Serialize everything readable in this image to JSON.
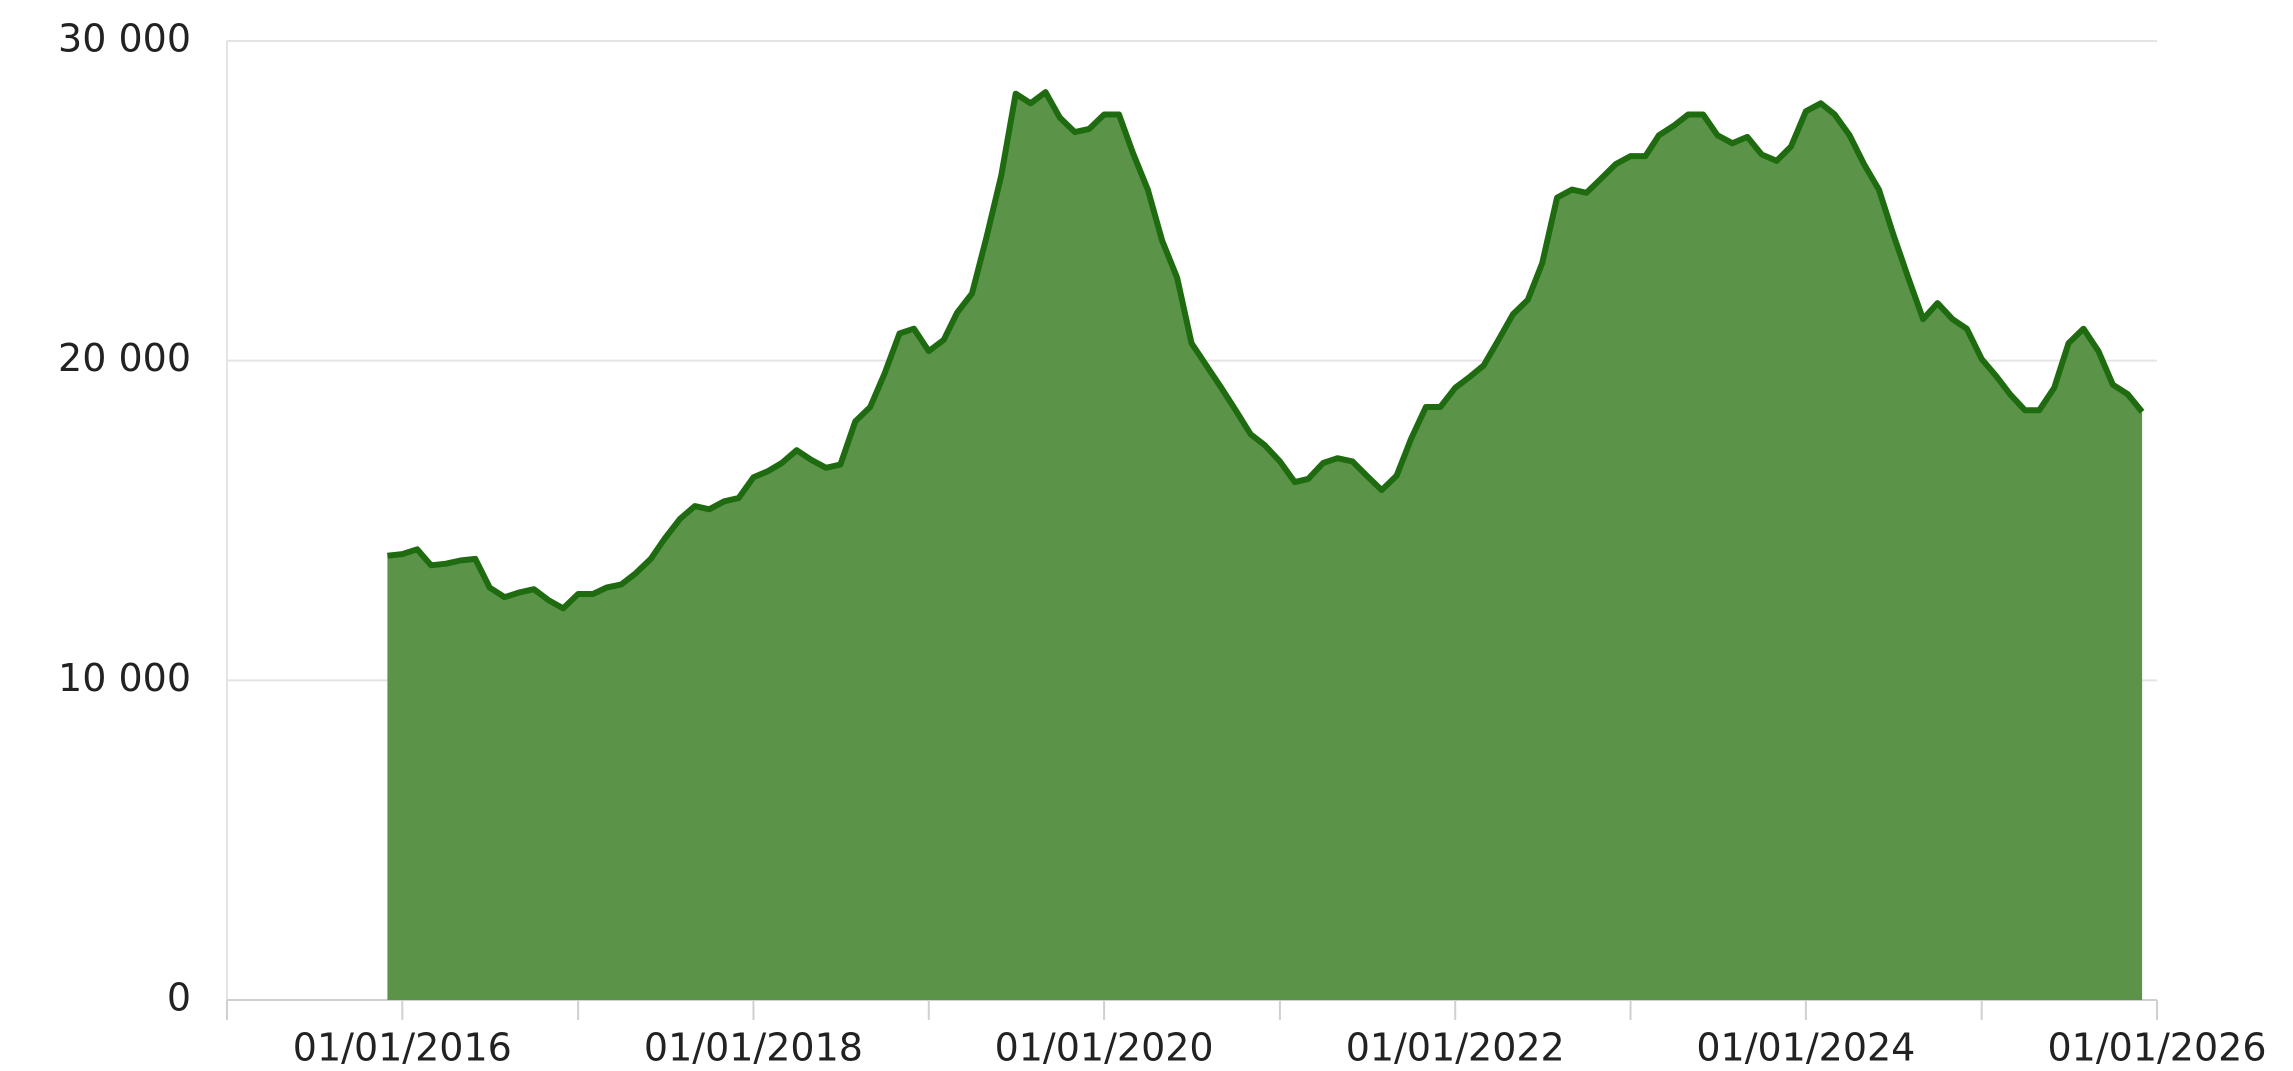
{
  "chart_data": {
    "type": "area",
    "x": [
      "01/12/2015",
      "01/01/2016",
      "01/02/2016",
      "01/03/2016",
      "01/04/2016",
      "01/05/2016",
      "01/06/2016",
      "01/07/2016",
      "01/08/2016",
      "01/09/2016",
      "01/10/2016",
      "01/11/2016",
      "01/12/2016",
      "01/01/2017",
      "01/02/2017",
      "01/03/2017",
      "01/04/2017",
      "01/05/2017",
      "01/06/2017",
      "01/07/2017",
      "01/08/2017",
      "01/09/2017",
      "01/10/2017",
      "01/11/2017",
      "01/12/2017",
      "01/01/2018",
      "01/02/2018",
      "01/03/2018",
      "01/04/2018",
      "01/05/2018",
      "01/06/2018",
      "01/07/2018",
      "01/08/2018",
      "01/09/2018",
      "01/10/2018",
      "01/11/2018",
      "01/12/2018",
      "01/01/2019",
      "01/02/2019",
      "01/03/2019",
      "01/04/2019",
      "01/05/2019",
      "01/06/2019",
      "01/07/2019",
      "01/08/2019",
      "01/09/2019",
      "01/10/2019",
      "01/11/2019",
      "01/12/2019",
      "01/01/2020",
      "01/02/2020",
      "01/03/2020",
      "01/04/2020",
      "01/05/2020",
      "01/06/2020",
      "01/07/2020",
      "01/08/2020",
      "01/09/2020",
      "01/10/2020",
      "01/11/2020",
      "01/12/2020",
      "01/01/2021",
      "01/02/2021",
      "01/03/2021",
      "01/04/2021",
      "01/05/2021",
      "01/06/2021",
      "01/07/2021",
      "01/08/2021",
      "01/09/2021",
      "01/10/2021",
      "01/11/2021",
      "01/12/2021",
      "01/01/2022",
      "01/02/2022",
      "01/03/2022",
      "01/04/2022",
      "01/05/2022",
      "01/06/2022",
      "01/07/2022",
      "01/08/2022",
      "01/09/2022",
      "01/10/2022",
      "01/11/2022",
      "01/12/2022",
      "01/01/2023",
      "01/02/2023",
      "01/03/2023",
      "01/04/2023",
      "01/05/2023",
      "01/06/2023",
      "01/07/2023",
      "01/08/2023",
      "01/09/2023",
      "01/10/2023",
      "01/11/2023",
      "01/12/2023",
      "01/01/2024",
      "01/02/2024",
      "01/03/2024",
      "01/04/2024",
      "01/05/2024",
      "01/06/2024",
      "01/07/2024",
      "01/08/2024",
      "01/09/2024",
      "01/10/2024",
      "01/11/2024",
      "01/12/2024",
      "01/01/2025",
      "01/02/2025",
      "01/03/2025",
      "01/04/2025",
      "01/05/2025",
      "01/06/2025",
      "01/07/2025",
      "01/08/2025",
      "01/09/2025",
      "01/10/2025",
      "01/11/2025",
      "01/12/2025"
    ],
    "series": [
      {
        "name": null,
        "color": "#1f6b10",
        "fill": "#5b9449",
        "values": [
          13900,
          13950,
          14100,
          13600,
          13650,
          13750,
          13800,
          12900,
          12600,
          12750,
          12850,
          12500,
          12250,
          12700,
          12700,
          12900,
          13000,
          13350,
          13800,
          14450,
          15050,
          15450,
          15350,
          15600,
          15700,
          16350,
          16550,
          16800,
          17200,
          16900,
          16650,
          16750,
          18100,
          18550,
          19600,
          20850,
          21000,
          20300,
          20650,
          21500,
          22100,
          23850,
          25800,
          28350,
          28050,
          28400,
          27600,
          27150,
          27250,
          27700,
          27700,
          26500,
          25350,
          23750,
          22600,
          20550,
          19850,
          19150,
          18450,
          17700,
          17350,
          16850,
          16200,
          16300,
          16800,
          16950,
          16850,
          16400,
          15950,
          16400,
          17550,
          18550,
          18550,
          19150,
          19500,
          19850,
          20650,
          21450,
          21900,
          23050,
          25100,
          25350,
          25250,
          25700,
          26150,
          26400,
          26400,
          27050,
          27350,
          27700,
          27700,
          27050,
          26800,
          27000,
          26450,
          26250,
          26700,
          27800,
          28050,
          27700,
          27050,
          26150,
          25350,
          23950,
          22600,
          21300,
          21800,
          21300,
          21000,
          20050,
          19500,
          18950,
          18450,
          18450,
          19150,
          20550,
          21000,
          20300,
          19250,
          18950,
          18400
        ]
      }
    ],
    "xlim": [
      "01/01/2015",
      "01/01/2026"
    ],
    "xticks": [
      "01/01/2016",
      "01/01/2018",
      "01/01/2020",
      "01/01/2022",
      "01/01/2024",
      "01/01/2026"
    ],
    "xminor_ticks": [
      "01/01/2015",
      "01/01/2017",
      "01/01/2019",
      "01/01/2021",
      "01/01/2023",
      "01/01/2025"
    ],
    "ylim": [
      0,
      30000
    ],
    "yticks": [
      0,
      {
        "value": 10000,
        "label": "10 000"
      },
      {
        "value": 20000,
        "label": "20 000"
      },
      {
        "value": 30000,
        "label": "30 000"
      }
    ],
    "grid": true
  }
}
